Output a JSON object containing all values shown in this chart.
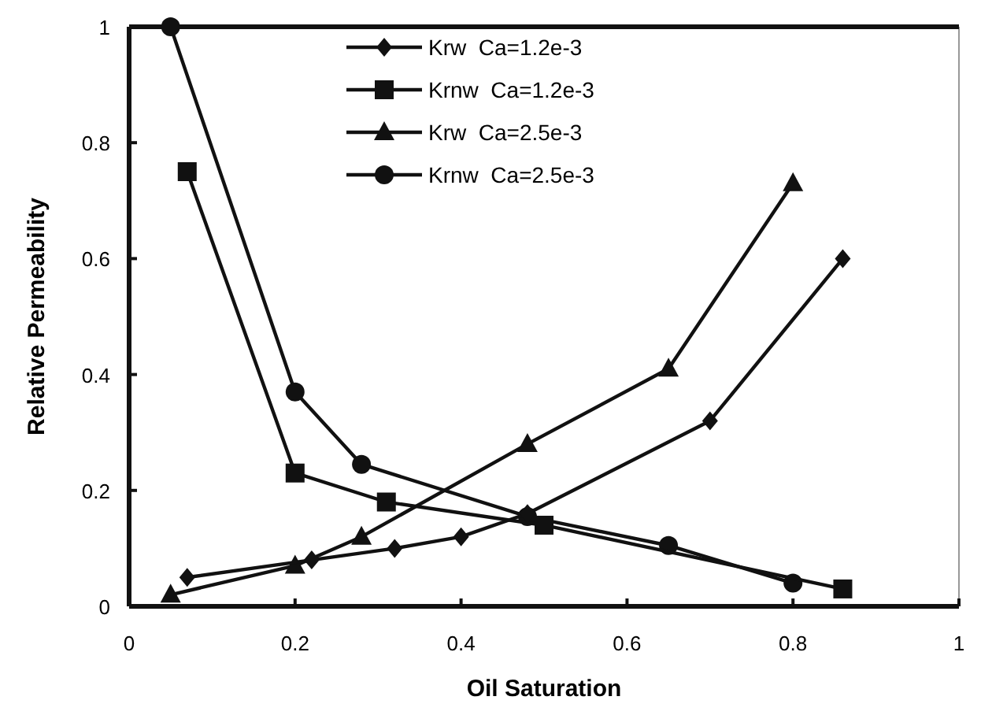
{
  "chart_data": {
    "type": "line",
    "xlabel": "Oil Saturation",
    "ylabel": "Relative Permeability",
    "xlim": [
      0,
      1
    ],
    "xticks": [
      0,
      0.2,
      0.4,
      0.6,
      0.8,
      1
    ],
    "ylim": [
      0,
      1
    ],
    "yticks": [
      0,
      0.2,
      0.4,
      0.6,
      0.8,
      1
    ],
    "grid": false,
    "legend": "top",
    "line_style": "solid",
    "series": [
      {
        "name": "Krw  Ca=1.2e-3",
        "color": "#111111",
        "marker": "diamond",
        "x": [
          0.07,
          0.22,
          0.32,
          0.4,
          0.48,
          0.7,
          0.86
        ],
        "values": [
          0.05,
          0.08,
          0.1,
          0.12,
          0.16,
          0.32,
          0.6
        ]
      },
      {
        "name": "Krnw  Ca=1.2e-3",
        "color": "#111111",
        "marker": "square",
        "x": [
          0.07,
          0.2,
          0.31,
          0.5,
          0.86
        ],
        "values": [
          0.75,
          0.23,
          0.18,
          0.14,
          0.03
        ]
      },
      {
        "name": "Krw  Ca=2.5e-3",
        "color": "#111111",
        "marker": "triangle",
        "x": [
          0.05,
          0.2,
          0.28,
          0.48,
          0.65,
          0.8
        ],
        "values": [
          0.02,
          0.07,
          0.12,
          0.28,
          0.41,
          0.73
        ]
      },
      {
        "name": "Krnw  Ca=2.5e-3",
        "color": "#111111",
        "marker": "circle",
        "x": [
          0.05,
          0.2,
          0.28,
          0.48,
          0.65,
          0.8
        ],
        "values": [
          1.0,
          0.37,
          0.245,
          0.155,
          0.105,
          0.04
        ]
      }
    ]
  }
}
